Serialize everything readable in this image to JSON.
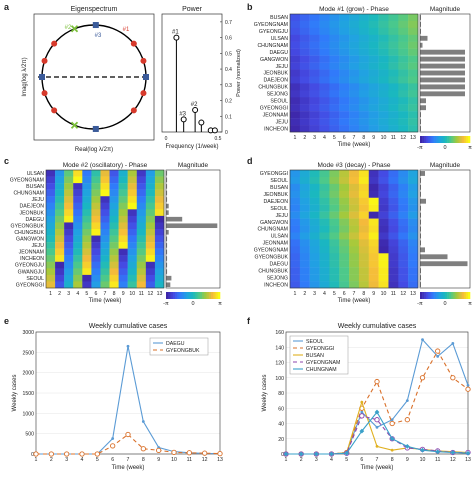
{
  "panel_letters": [
    "a",
    "b",
    "c",
    "d",
    "e",
    "f"
  ],
  "colorbar_ticks": {
    "min": "-π",
    "mid": "0",
    "max": "π"
  },
  "chart_data": [
    {
      "id": "eigenspectrum",
      "type": "scatter",
      "title": "Eigenspectrum",
      "xlabel": "Real(log λ/2π)",
      "ylabel": "Imag(log λ/2π)",
      "annotations": [
        "#2",
        "#1",
        "#3"
      ],
      "colors": {
        "circle": "#000000",
        "red": "#d73a2c",
        "green": "#7bbf3a",
        "blue": "#3b5b9a"
      },
      "points": [
        {
          "angle": 140,
          "marker": "red"
        },
        {
          "angle": 162,
          "marker": "red"
        },
        {
          "angle": 198,
          "marker": "red"
        },
        {
          "angle": 220,
          "marker": "red"
        },
        {
          "angle": 40,
          "marker": "red"
        },
        {
          "angle": 18,
          "marker": "red"
        },
        {
          "angle": 342,
          "marker": "red"
        },
        {
          "angle": 320,
          "marker": "red"
        },
        {
          "angle": 112,
          "marker": "green"
        },
        {
          "angle": 248,
          "marker": "green"
        },
        {
          "angle": 88,
          "marker": "blue"
        },
        {
          "angle": 272,
          "marker": "blue"
        },
        {
          "angle": 180,
          "marker": "blue"
        },
        {
          "angle": 0,
          "marker": "blue"
        }
      ]
    },
    {
      "id": "power",
      "type": "scatter",
      "title": "Power",
      "xlabel": "Frequency (1/week)",
      "ylabel": "Power (normalized)",
      "xticks": [
        "0",
        "0.5"
      ],
      "yticks": [
        "0",
        "0.1",
        "0.2",
        "0.3",
        "0.4",
        "0.5",
        "0.6",
        "0.7"
      ],
      "ylim": [
        0,
        0.75
      ],
      "stems": [
        {
          "label": "#1",
          "x": 0.1,
          "y": 0.6
        },
        {
          "label": "#3",
          "x": 0.17,
          "y": 0.08
        },
        {
          "label": "#2",
          "x": 0.28,
          "y": 0.14
        },
        {
          "label": "",
          "x": 0.34,
          "y": 0.06
        },
        {
          "label": "",
          "x": 0.43,
          "y": 0.01
        },
        {
          "label": "",
          "x": 0.47,
          "y": 0.01
        }
      ]
    },
    {
      "id": "mode1",
      "type": "heatmap",
      "title": "Mode #1 (grow) - Phase",
      "magnitude_title": "Magnitude",
      "xlabel": "Time (week)",
      "x": [
        1,
        2,
        3,
        4,
        5,
        6,
        7,
        8,
        9,
        10,
        11,
        12,
        13
      ],
      "rows": [
        "BUSAN",
        "GYEONGNAM",
        "GYEONGJU",
        "ULSAN",
        "CHUNGNAM",
        "DAEGU",
        "GANGWON",
        "JEJU",
        "JEONBUK",
        "DAEJEON",
        "CHUNGBUK",
        "SEJONG",
        "SEOUL",
        "GYEONGGI",
        "JEONNAM",
        "JEJU",
        "INCHEON"
      ],
      "phase_start": [
        -2.2,
        -2.1,
        -2.2,
        -2.4,
        -2.3,
        -2.4,
        -2.6,
        -2.5,
        -2.7,
        -2.6,
        -2.9,
        -2.8,
        -3.0,
        -2.9,
        -3.1,
        -3.0,
        -3.1
      ],
      "phase_step": 0.28,
      "magnitude": [
        0.02,
        0.02,
        0.02,
        0.15,
        0.05,
        0.9,
        0.9,
        0.9,
        0.9,
        0.9,
        0.9,
        0.9,
        0.12,
        0.12,
        0.02,
        0.02,
        0.02
      ]
    },
    {
      "id": "mode2",
      "type": "heatmap",
      "title": "Mode #2 (oscillatory) - Phase",
      "magnitude_title": "Magnitude",
      "xlabel": "Time (week)",
      "x": [
        1,
        2,
        3,
        4,
        5,
        6,
        7,
        8,
        9,
        10,
        11,
        12,
        13
      ],
      "rows": [
        "ULSAN",
        "GYEONGNAM",
        "BUSAN",
        "CHUNGNAM",
        "JEJU",
        "DAEJEON",
        "JEONBUK",
        "DAEGU",
        "GYEONGBUK",
        "CHUNGBUK",
        "GANGWON",
        "JEJU",
        "JEONNAM",
        "INCHEON",
        "GYEONGJU",
        "GWANGJU",
        "SEOUL",
        "GYEONGGI"
      ],
      "phase_start": [
        -2.9,
        -2.6,
        -2.3,
        -2.0,
        -1.7,
        -1.4,
        -1.1,
        -0.8,
        -0.5,
        -0.2,
        0.1,
        0.4,
        0.7,
        1.0,
        1.3,
        1.6,
        1.9,
        2.2
      ],
      "phase_step": 1.9,
      "magnitude": [
        0.02,
        0.02,
        0.02,
        0.02,
        0.02,
        0.05,
        0.05,
        0.3,
        0.95,
        0.05,
        0.02,
        0.02,
        0.02,
        0.02,
        0.02,
        0.02,
        0.1,
        0.08
      ]
    },
    {
      "id": "mode3",
      "type": "heatmap",
      "title": "Mode #3 (decay) - Phase",
      "magnitude_title": "Magnitude",
      "xlabel": "Time (week)",
      "x": [
        1,
        2,
        3,
        4,
        5,
        6,
        7,
        8,
        9,
        10,
        11,
        12,
        13
      ],
      "rows": [
        "GYEONGGI",
        "SEOUL",
        "BUSAN",
        "JEONBUK",
        "DAEJEON",
        "SEOUL",
        "JEJU",
        "GANGWON",
        "CHUNGNAM",
        "ULSAN",
        "JEONNAM",
        "GYEONGNAM",
        "GYEONGBUK",
        "DAEGU",
        "CHUNGBUK",
        "SEJONG",
        "INCHEON"
      ],
      "phase_start": [
        -1.0,
        -0.9,
        -1.2,
        -1.1,
        -1.3,
        -1.4,
        -1.2,
        -1.5,
        -1.6,
        -1.4,
        -1.7,
        -1.8,
        -1.9,
        -1.9,
        -2.0,
        -2.0,
        -2.1
      ],
      "phase_step": 0.55,
      "magnitude": [
        0.1,
        0.02,
        0.02,
        0.02,
        0.12,
        0.02,
        0.02,
        0.02,
        0.02,
        0.02,
        0.02,
        0.1,
        0.55,
        0.95,
        0.02,
        0.02,
        0.02
      ]
    },
    {
      "id": "weekly_daegu",
      "type": "line",
      "title": "Weekly cumulative cases",
      "xlabel": "Time (week)",
      "ylabel": "Weekly cases",
      "x": [
        1,
        2,
        3,
        4,
        5,
        6,
        7,
        8,
        9,
        10,
        11,
        12,
        13
      ],
      "ylim": [
        0,
        3000
      ],
      "yticks": [
        0,
        500,
        1000,
        1500,
        2000,
        2500,
        3000
      ],
      "series": [
        {
          "name": "DAEGU",
          "color": "#5b9bd5",
          "marker": "dot",
          "dash": "",
          "values": [
            0,
            0,
            0,
            0,
            0,
            380,
            2650,
            800,
            160,
            60,
            30,
            15,
            10
          ]
        },
        {
          "name": "GYEONGBUK",
          "color": "#d9702a",
          "marker": "circle",
          "dash": "4,3",
          "values": [
            0,
            0,
            0,
            0,
            0,
            200,
            480,
            130,
            90,
            40,
            30,
            20,
            10
          ]
        }
      ]
    },
    {
      "id": "weekly_regions",
      "type": "line",
      "title": "Weekly cumulative cases",
      "xlabel": "Time (week)",
      "ylabel": "Weekly cases",
      "x": [
        1,
        2,
        3,
        4,
        5,
        6,
        7,
        8,
        9,
        10,
        11,
        12,
        13
      ],
      "ylim": [
        0,
        160
      ],
      "yticks": [
        0,
        20,
        40,
        60,
        80,
        100,
        120,
        140,
        160
      ],
      "series": [
        {
          "name": "SEOUL",
          "color": "#5b9bd5",
          "marker": "dot",
          "dash": "",
          "values": [
            0,
            0,
            0,
            0,
            2,
            55,
            35,
            45,
            70,
            150,
            128,
            145,
            90
          ]
        },
        {
          "name": "GYEONGGI",
          "color": "#d9702a",
          "marker": "circle",
          "dash": "4,3",
          "values": [
            0,
            0,
            0,
            0,
            2,
            60,
            95,
            40,
            45,
            100,
            135,
            100,
            85
          ]
        },
        {
          "name": "BUSAN",
          "color": "#e0b020",
          "marker": "dot",
          "dash": "",
          "values": [
            0,
            0,
            0,
            0,
            2,
            68,
            10,
            5,
            8,
            6,
            4,
            3,
            2
          ]
        },
        {
          "name": "GYEONGNAM",
          "color": "#8e44ad",
          "marker": "circle",
          "dash": "4,3",
          "values": [
            0,
            0,
            0,
            0,
            1,
            50,
            45,
            20,
            8,
            6,
            4,
            2,
            2
          ]
        },
        {
          "name": "CHUNGNAM",
          "color": "#3aa0c9",
          "marker": "diamond",
          "dash": "",
          "values": [
            0,
            0,
            0,
            0,
            1,
            30,
            55,
            20,
            10,
            5,
            3,
            2,
            1
          ]
        }
      ]
    }
  ]
}
